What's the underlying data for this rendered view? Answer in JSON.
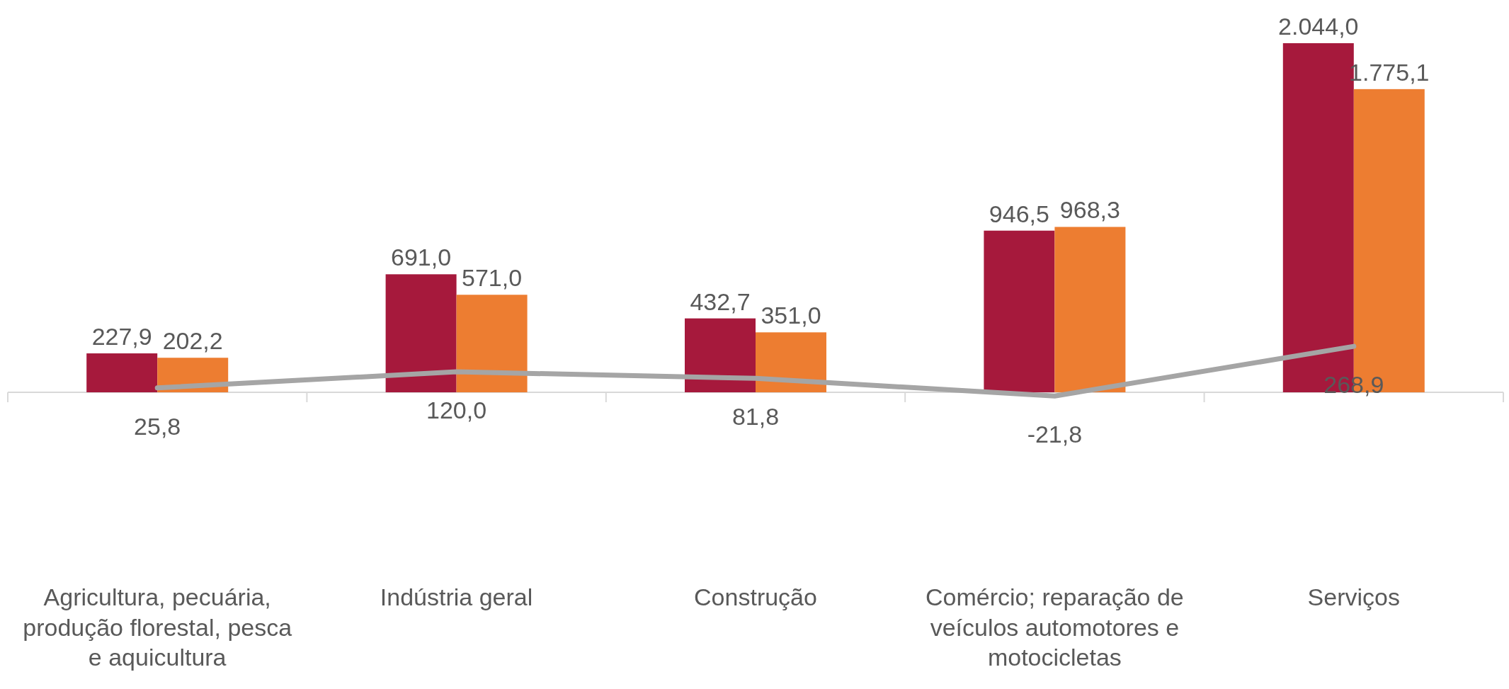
{
  "chart_data": {
    "type": "bar",
    "categories": [
      "Agricultura, pecuária, produção florestal, pesca e aquicultura",
      "Indústria geral",
      "Construção",
      "Comércio; reparação de veículos automotores e motocicletas",
      "Serviços"
    ],
    "series": [
      {
        "color": "#a6193c",
        "values": [
          227.9,
          691.0,
          432.7,
          946.5,
          2044.0
        ],
        "value_labels": [
          "227,9",
          "691,0",
          "432,7",
          "946,5",
          "2.044,0"
        ]
      },
      {
        "color": "#ed7d31",
        "values": [
          202.2,
          571.0,
          351.0,
          968.3,
          1775.1
        ],
        "value_labels": [
          "202,2",
          "571,0",
          "351,0",
          "968,3",
          "1.775,1"
        ]
      },
      {
        "type": "line",
        "color": "#a5a5a5",
        "values": [
          25.8,
          120.0,
          81.8,
          -21.8,
          268.9
        ],
        "value_labels": [
          "25,8",
          "120,0",
          "81,8",
          "-21,8",
          "268,9"
        ]
      }
    ]
  }
}
